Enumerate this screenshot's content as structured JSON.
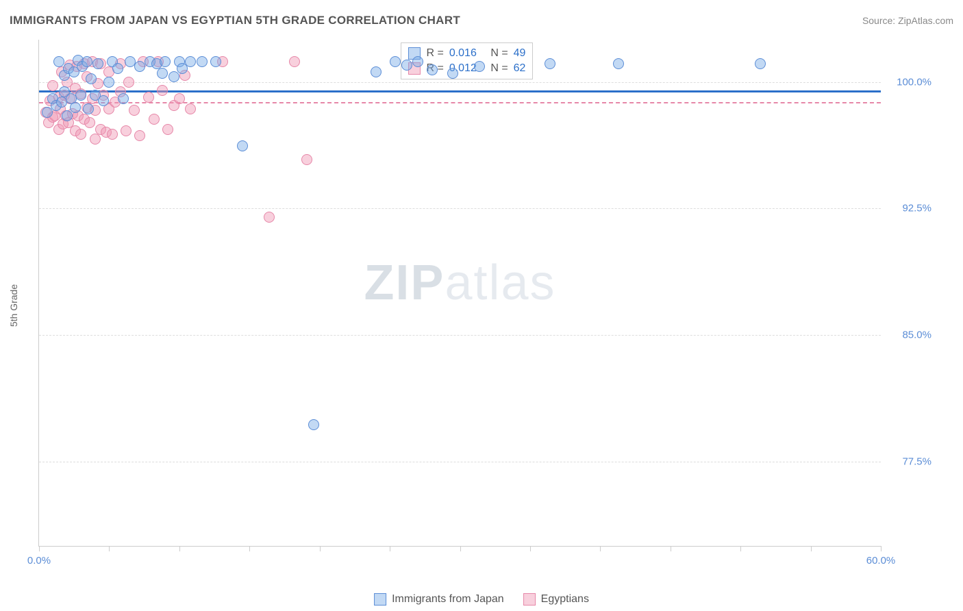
{
  "header": {
    "title": "IMMIGRANTS FROM JAPAN VS EGYPTIAN 5TH GRADE CORRELATION CHART",
    "source": "Source: ZipAtlas.com"
  },
  "watermark": {
    "zip": "ZIP",
    "atlas": "atlas"
  },
  "chart": {
    "type": "scatter",
    "background_color": "#ffffff",
    "grid_color": "#dddddd",
    "axis_color": "#cccccc",
    "y_axis_label": "5th Grade",
    "xlim": [
      0.0,
      60.0
    ],
    "ylim": [
      72.5,
      102.5
    ],
    "x_ticks": [
      0.0,
      5.0,
      10.0,
      15.0,
      20.0,
      25.0,
      30.0,
      35.0,
      40.0,
      45.0,
      50.0,
      55.0,
      60.0
    ],
    "x_tick_labels": {
      "0": "0.0%",
      "60": "60.0%"
    },
    "y_ticks": [
      77.5,
      85.0,
      92.5,
      100.0
    ],
    "y_tick_labels": [
      "77.5%",
      "85.0%",
      "92.5%",
      "100.0%"
    ],
    "label_fontsize": 15,
    "label_color": "#5b8dd6",
    "marker_size": 16,
    "series": {
      "blue": {
        "name": "Immigrants from Japan",
        "color_fill": "rgba(120,170,230,0.45)",
        "color_stroke": "#5b8dd6",
        "R": "0.016",
        "N": "49",
        "trend": {
          "color": "#2b6fc9",
          "width": 3,
          "style": "solid",
          "y_at_xmin": 99.2,
          "y_at_xmax": 99.8
        },
        "points": [
          {
            "x": 0.6,
            "y": 98.2
          },
          {
            "x": 1.0,
            "y": 99.0
          },
          {
            "x": 1.2,
            "y": 98.6
          },
          {
            "x": 1.4,
            "y": 101.2
          },
          {
            "x": 1.6,
            "y": 98.8
          },
          {
            "x": 1.8,
            "y": 99.4
          },
          {
            "x": 1.8,
            "y": 100.4
          },
          {
            "x": 2.0,
            "y": 98.0
          },
          {
            "x": 2.1,
            "y": 100.8
          },
          {
            "x": 2.3,
            "y": 99.0
          },
          {
            "x": 2.5,
            "y": 100.6
          },
          {
            "x": 2.6,
            "y": 98.5
          },
          {
            "x": 2.8,
            "y": 101.3
          },
          {
            "x": 3.0,
            "y": 99.2
          },
          {
            "x": 3.1,
            "y": 100.9
          },
          {
            "x": 3.4,
            "y": 101.2
          },
          {
            "x": 3.5,
            "y": 98.4
          },
          {
            "x": 3.7,
            "y": 100.2
          },
          {
            "x": 4.0,
            "y": 99.2
          },
          {
            "x": 4.2,
            "y": 101.1
          },
          {
            "x": 4.6,
            "y": 98.9
          },
          {
            "x": 5.0,
            "y": 100.0
          },
          {
            "x": 5.2,
            "y": 101.2
          },
          {
            "x": 5.6,
            "y": 100.8
          },
          {
            "x": 6.0,
            "y": 99.0
          },
          {
            "x": 6.5,
            "y": 101.2
          },
          {
            "x": 7.2,
            "y": 100.9
          },
          {
            "x": 7.9,
            "y": 101.2
          },
          {
            "x": 8.4,
            "y": 101.1
          },
          {
            "x": 8.8,
            "y": 100.5
          },
          {
            "x": 9.0,
            "y": 101.2
          },
          {
            "x": 9.6,
            "y": 100.3
          },
          {
            "x": 10.0,
            "y": 101.2
          },
          {
            "x": 10.2,
            "y": 100.8
          },
          {
            "x": 10.8,
            "y": 101.2
          },
          {
            "x": 11.6,
            "y": 101.2
          },
          {
            "x": 12.6,
            "y": 101.2
          },
          {
            "x": 14.5,
            "y": 96.2
          },
          {
            "x": 19.6,
            "y": 79.7
          },
          {
            "x": 24.0,
            "y": 100.6
          },
          {
            "x": 25.4,
            "y": 101.2
          },
          {
            "x": 26.2,
            "y": 101.0
          },
          {
            "x": 27.0,
            "y": 101.2
          },
          {
            "x": 28.0,
            "y": 100.7
          },
          {
            "x": 29.5,
            "y": 100.5
          },
          {
            "x": 31.4,
            "y": 100.9
          },
          {
            "x": 36.4,
            "y": 101.1
          },
          {
            "x": 41.3,
            "y": 101.1
          },
          {
            "x": 51.4,
            "y": 101.1
          }
        ]
      },
      "pink": {
        "name": "Egyptians",
        "color_fill": "rgba(240,150,180,0.45)",
        "color_stroke": "#e687a8",
        "R": "0.012",
        "N": "62",
        "trend": {
          "color": "#e687a8",
          "width": 2,
          "style": "dashed",
          "y_at_xmin": 98.7,
          "y_at_xmax": 98.9
        },
        "points": [
          {
            "x": 0.5,
            "y": 98.2
          },
          {
            "x": 0.7,
            "y": 97.6
          },
          {
            "x": 0.8,
            "y": 98.9
          },
          {
            "x": 1.0,
            "y": 97.9
          },
          {
            "x": 1.0,
            "y": 99.8
          },
          {
            "x": 1.1,
            "y": 98.0
          },
          {
            "x": 1.4,
            "y": 97.2
          },
          {
            "x": 1.4,
            "y": 99.1
          },
          {
            "x": 1.5,
            "y": 98.4
          },
          {
            "x": 1.6,
            "y": 100.6
          },
          {
            "x": 1.7,
            "y": 97.5
          },
          {
            "x": 1.8,
            "y": 99.2
          },
          {
            "x": 1.9,
            "y": 98.0
          },
          {
            "x": 2.0,
            "y": 100.0
          },
          {
            "x": 2.1,
            "y": 97.6
          },
          {
            "x": 2.2,
            "y": 99.0
          },
          {
            "x": 2.2,
            "y": 101.0
          },
          {
            "x": 2.4,
            "y": 98.1
          },
          {
            "x": 2.6,
            "y": 97.1
          },
          {
            "x": 2.6,
            "y": 99.6
          },
          {
            "x": 2.7,
            "y": 100.9
          },
          {
            "x": 2.8,
            "y": 98.0
          },
          {
            "x": 3.0,
            "y": 96.9
          },
          {
            "x": 3.0,
            "y": 99.3
          },
          {
            "x": 3.2,
            "y": 97.8
          },
          {
            "x": 3.2,
            "y": 101.1
          },
          {
            "x": 3.4,
            "y": 98.5
          },
          {
            "x": 3.4,
            "y": 100.3
          },
          {
            "x": 3.6,
            "y": 97.6
          },
          {
            "x": 3.8,
            "y": 99.0
          },
          {
            "x": 3.8,
            "y": 101.2
          },
          {
            "x": 4.0,
            "y": 96.6
          },
          {
            "x": 4.0,
            "y": 98.3
          },
          {
            "x": 4.2,
            "y": 99.9
          },
          {
            "x": 4.4,
            "y": 97.2
          },
          {
            "x": 4.4,
            "y": 101.1
          },
          {
            "x": 4.6,
            "y": 99.2
          },
          {
            "x": 4.8,
            "y": 97.0
          },
          {
            "x": 5.0,
            "y": 98.4
          },
          {
            "x": 5.0,
            "y": 100.6
          },
          {
            "x": 5.2,
            "y": 96.9
          },
          {
            "x": 5.4,
            "y": 98.8
          },
          {
            "x": 5.8,
            "y": 99.4
          },
          {
            "x": 5.8,
            "y": 101.1
          },
          {
            "x": 6.2,
            "y": 97.1
          },
          {
            "x": 6.4,
            "y": 100.0
          },
          {
            "x": 6.8,
            "y": 98.3
          },
          {
            "x": 7.2,
            "y": 96.8
          },
          {
            "x": 7.4,
            "y": 101.2
          },
          {
            "x": 7.8,
            "y": 99.1
          },
          {
            "x": 8.2,
            "y": 97.8
          },
          {
            "x": 8.5,
            "y": 101.2
          },
          {
            "x": 8.8,
            "y": 99.5
          },
          {
            "x": 9.2,
            "y": 97.2
          },
          {
            "x": 9.6,
            "y": 98.6
          },
          {
            "x": 10.0,
            "y": 99.0
          },
          {
            "x": 10.4,
            "y": 100.4
          },
          {
            "x": 10.8,
            "y": 98.4
          },
          {
            "x": 13.1,
            "y": 101.2
          },
          {
            "x": 16.4,
            "y": 92.0
          },
          {
            "x": 18.2,
            "y": 101.2
          },
          {
            "x": 19.1,
            "y": 95.4
          }
        ]
      }
    },
    "legend": {
      "stat_box": {
        "R_label": "R =",
        "N_label": "N ="
      },
      "bottom": {
        "s1": "Immigrants from Japan",
        "s2": "Egyptians"
      }
    }
  }
}
